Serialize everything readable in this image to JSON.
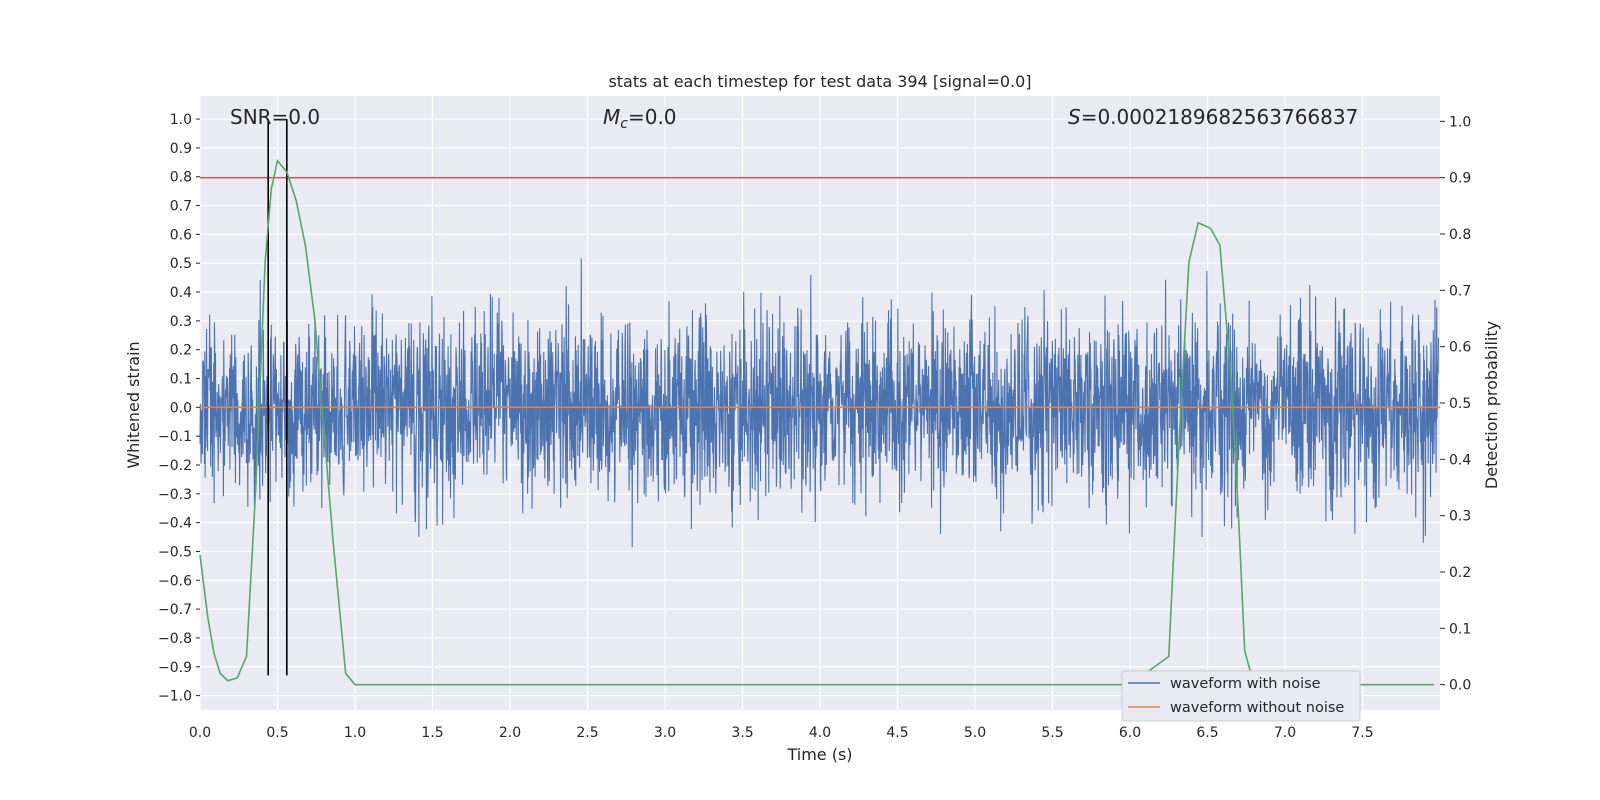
{
  "chart_data": {
    "type": "line",
    "title": "stats at each timestep for test data 394 [signal=0.0]",
    "xlabel": "Time (s)",
    "ylabel": "Whitened strain",
    "ylabel_right": "Detection probability",
    "xlim": [
      0.0,
      8.0
    ],
    "ylim": [
      -1.05,
      1.08
    ],
    "ylim_right": [
      -0.045,
      1.045
    ],
    "xticks": [
      "0.0",
      "0.5",
      "1.0",
      "1.5",
      "2.0",
      "2.5",
      "3.0",
      "3.5",
      "4.0",
      "4.5",
      "5.0",
      "5.5",
      "6.0",
      "6.5",
      "7.0",
      "7.5"
    ],
    "xtick_values": [
      0.0,
      0.5,
      1.0,
      1.5,
      2.0,
      2.5,
      3.0,
      3.5,
      4.0,
      4.5,
      5.0,
      5.5,
      6.0,
      6.5,
      7.0,
      7.5
    ],
    "yticks": [
      "1.0",
      "0.9",
      "0.8",
      "0.7",
      "0.6",
      "0.5",
      "0.4",
      "0.3",
      "0.2",
      "0.1",
      "0.0",
      "−0.1",
      "−0.2",
      "−0.3",
      "−0.4",
      "−0.5",
      "−0.6",
      "−0.7",
      "−0.8",
      "−0.9",
      "−1.0"
    ],
    "ytick_values": [
      1.0,
      0.9,
      0.8,
      0.7,
      0.6,
      0.5,
      0.4,
      0.3,
      0.2,
      0.1,
      0.0,
      -0.1,
      -0.2,
      -0.3,
      -0.4,
      -0.5,
      -0.6,
      -0.7,
      -0.8,
      -0.9,
      -1.0
    ],
    "yticks_right": [
      "1.0",
      "0.9",
      "0.8",
      "0.7",
      "0.6",
      "0.5",
      "0.4",
      "0.3",
      "0.2",
      "0.1",
      "0.0"
    ],
    "ytick_right_values": [
      1.0,
      0.9,
      0.8,
      0.7,
      0.6,
      0.5,
      0.4,
      0.3,
      0.2,
      0.1,
      0.0
    ],
    "annotations": {
      "snr": "SNR=0.0",
      "mc_symbol": "M",
      "mc_sub": "c",
      "mc_value": "=0.0",
      "s_symbol": "S",
      "s_value": "=0.0002189682563766837"
    },
    "threshold_right": 0.9,
    "vlines_x": [
      0.44,
      0.56
    ],
    "series": [
      {
        "name": "waveform with noise",
        "color": "#4c72b0",
        "note": "dense whitened noise, roughly within ±0.95"
      },
      {
        "name": "waveform without noise",
        "color": "#dd8452",
        "x": [
          0.0,
          8.0
        ],
        "y": [
          0.0,
          0.0
        ]
      },
      {
        "name": "detection probability",
        "color": "#55a868",
        "axis": "right",
        "x": [
          0.0,
          0.05,
          0.09,
          0.13,
          0.18,
          0.24,
          0.3,
          0.36,
          0.42,
          0.46,
          0.5,
          0.56,
          0.62,
          0.68,
          0.74,
          0.8,
          0.86,
          0.94,
          1.0,
          1.5,
          2.0,
          3.0,
          4.0,
          5.0,
          6.0,
          6.25,
          6.32,
          6.38,
          6.44,
          6.52,
          6.58,
          6.65,
          6.7,
          6.74,
          6.8,
          7.0,
          7.5,
          7.96
        ],
        "y": [
          0.23,
          0.12,
          0.056,
          0.02,
          0.007,
          0.012,
          0.05,
          0.35,
          0.75,
          0.88,
          0.93,
          0.91,
          0.86,
          0.78,
          0.65,
          0.45,
          0.25,
          0.02,
          0.0,
          0.0,
          0.0,
          0.0,
          0.0,
          0.0,
          0.0,
          0.05,
          0.45,
          0.75,
          0.82,
          0.81,
          0.78,
          0.55,
          0.3,
          0.06,
          0.0,
          0.0,
          0.0,
          0.0
        ]
      }
    ],
    "legend": [
      "waveform with noise",
      "waveform without noise"
    ],
    "legend_loc": "lower-right",
    "colors": {
      "background": "#eaeaf2",
      "grid": "#ffffff",
      "noise": "#4c72b0",
      "clean": "#dd8452",
      "probability": "#55a868",
      "threshold": "#c44e52",
      "vline": "#000000"
    }
  }
}
